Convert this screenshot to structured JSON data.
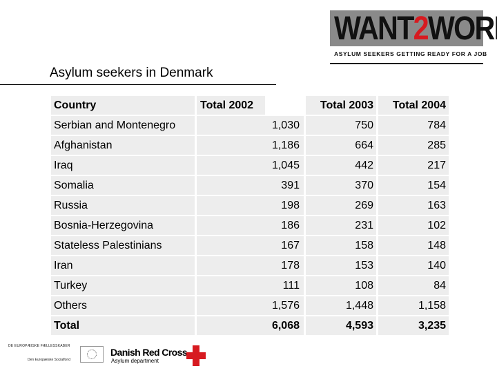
{
  "logo": {
    "text_a": "WANT",
    "text_b": "2",
    "text_c": "WORK",
    "tagline": "ASYLUM SEEKERS GETTING READY FOR A JOB"
  },
  "title": "Asylum seekers in Denmark",
  "table": {
    "headers": [
      "Country",
      "Total 2002",
      "Total 2003",
      "Total 2004"
    ],
    "rows": [
      [
        "Serbian and Montenegro",
        "1,030",
        "750",
        "784"
      ],
      [
        "Afghanistan",
        "1,186",
        "664",
        "285"
      ],
      [
        "Iraq",
        "1,045",
        "442",
        "217"
      ],
      [
        "Somalia",
        "391",
        "370",
        "154"
      ],
      [
        "Russia",
        "198",
        "269",
        "163"
      ],
      [
        "Bosnia-Herzegovina",
        "186",
        "231",
        "102"
      ],
      [
        "Stateless Palestinians",
        "167",
        "158",
        "148"
      ],
      [
        "Iran",
        "178",
        "153",
        "140"
      ],
      [
        "Turkey",
        "111",
        "108",
        "84"
      ],
      [
        "Others",
        "1,576",
        "1,448",
        "1,158"
      ]
    ],
    "total": [
      "Total",
      "6,068",
      "4,593",
      "3,235"
    ]
  },
  "footer": {
    "eu_line1": "DE EUROPÆISKE FÆLLESSKABER",
    "eu_line2": "Den Europæiske Socialfond",
    "drc_name": "Danish Red Cross",
    "drc_dept": "Asylum department"
  }
}
